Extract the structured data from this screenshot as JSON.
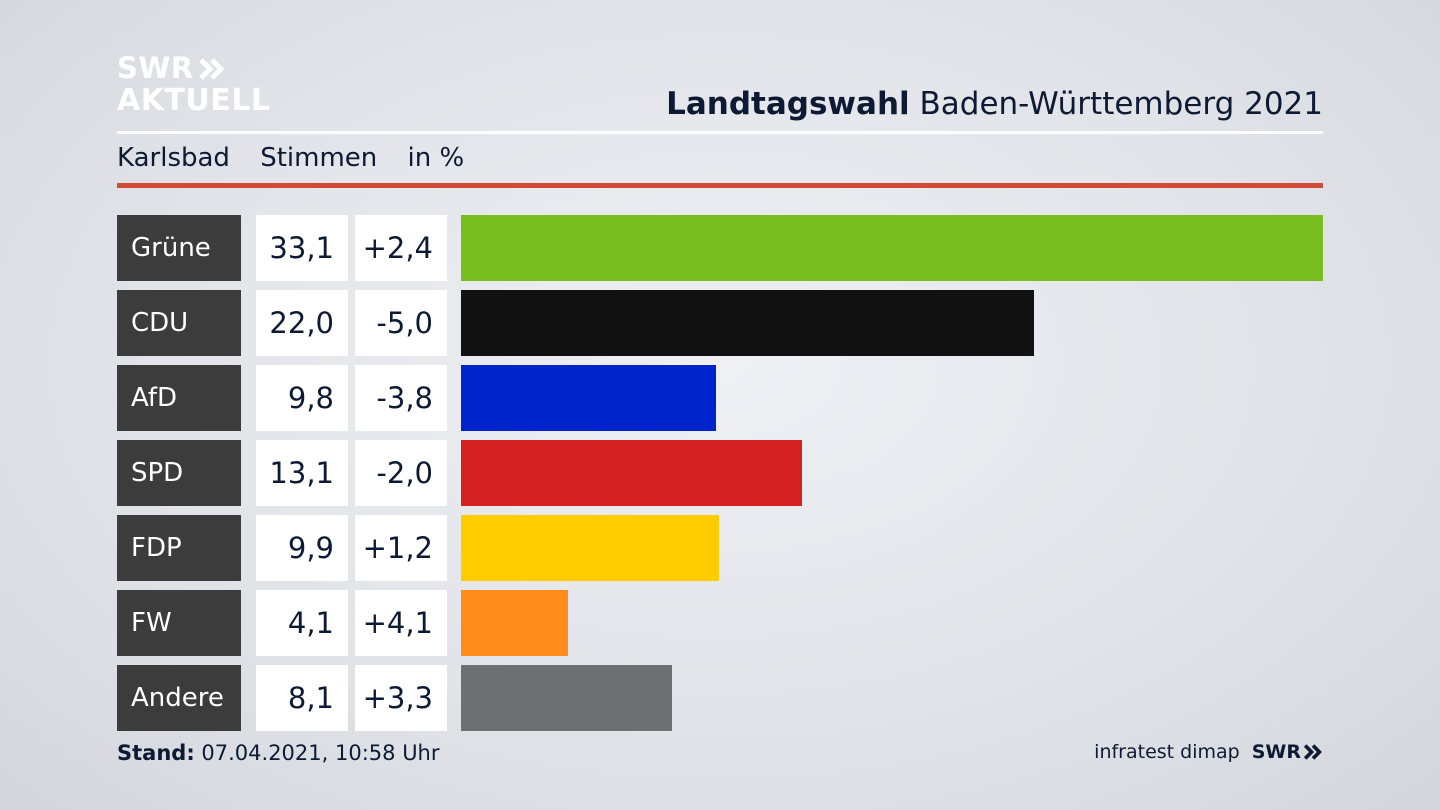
{
  "brand": {
    "line1": "SWR",
    "line2": "AKTUELL"
  },
  "header": {
    "title_bold": "Landtagswahl",
    "title_rest": "Baden-Württemberg 2021"
  },
  "subheader": {
    "place": "Karlsbad",
    "metric": "Stimmen",
    "unit": "in %"
  },
  "colors": {
    "accent_red": "#d14a35",
    "label_bg": "#3c3c3c"
  },
  "chart_data": {
    "type": "bar",
    "title": "Landtagswahl Baden-Württemberg 2021",
    "subtitle": "Karlsbad Stimmen in %",
    "categories": [
      "Grüne",
      "CDU",
      "AfD",
      "SPD",
      "FDP",
      "FW",
      "Andere"
    ],
    "values": [
      33.1,
      22.0,
      9.8,
      13.1,
      9.9,
      4.1,
      8.1
    ],
    "values_label": [
      "33,1",
      "22,0",
      "9,8",
      "13,1",
      "9,9",
      "4,1",
      "8,1"
    ],
    "change_label": [
      "+2,4",
      "-5,0",
      "-3,8",
      "-2,0",
      "+1,2",
      "+4,1",
      "+3,3"
    ],
    "bar_colors": [
      "#78be1e",
      "#111111",
      "#0023cc",
      "#d42020",
      "#ffcc00",
      "#ff8c1a",
      "#6e6f71"
    ],
    "ylim": [
      0,
      33.1
    ],
    "xlabel": "",
    "ylabel": ""
  },
  "footer": {
    "stand_label": "Stand:",
    "stand_value": "07.04.2021, 10:58 Uhr",
    "source": "infratest dimap",
    "brand": "SWR"
  }
}
